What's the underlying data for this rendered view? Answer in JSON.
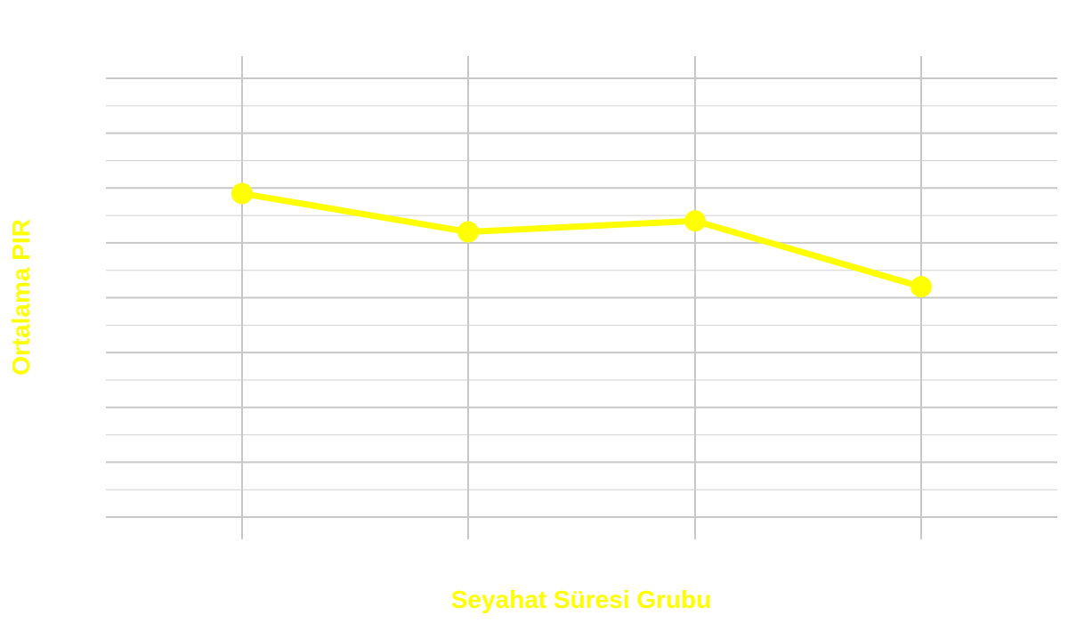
{
  "chart_data": {
    "type": "line",
    "title": "",
    "xlabel": "Seyahat Süresi Grubu",
    "ylabel": "Ortalama PIR",
    "categories": [
      "",
      "",
      "",
      ""
    ],
    "series": [
      {
        "values": [
          10.9,
          10.2,
          10.4,
          9.2
        ]
      }
    ],
    "ylim": [
      5,
      13
    ],
    "grid": true,
    "colors": {
      "series": "#ffff00",
      "axis_labels": "#ffff00",
      "grid_major": "#c8c8c8",
      "grid_minor": "#d2d2d2",
      "background": "#ffffff"
    }
  }
}
